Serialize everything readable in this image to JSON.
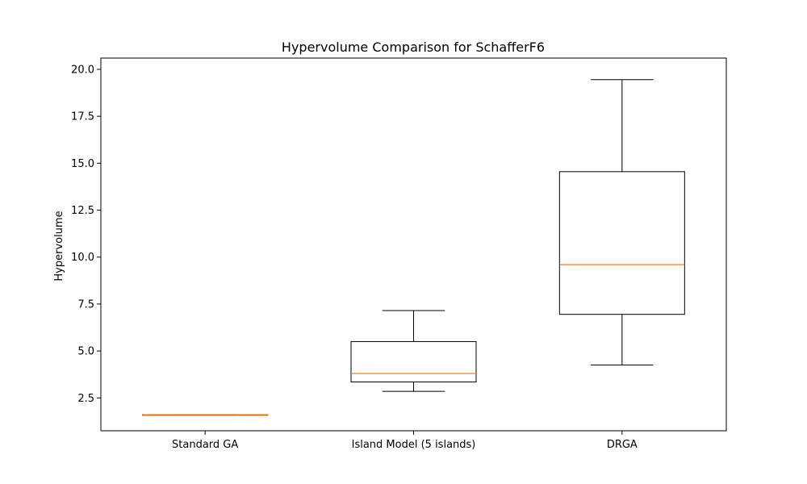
{
  "colors": {
    "box": "#000000",
    "median": "#ff7f0e",
    "background": "#ffffff"
  },
  "chart_data": {
    "type": "box",
    "title": "Hypervolume Comparison for SchafferF6",
    "xlabel": "",
    "ylabel": "Hypervolume",
    "ylim": [
      0.75,
      20.6
    ],
    "yticks": [
      "2.5",
      "5.0",
      "7.5",
      "10.0",
      "12.5",
      "15.0",
      "17.5",
      "20.0"
    ],
    "grid": false,
    "categories": [
      "Standard GA",
      "Island Model (5 islands)",
      "DRGA"
    ],
    "boxes": [
      {
        "min": 1.6,
        "q1": 1.6,
        "median": 1.6,
        "q3": 1.6,
        "max": 1.6
      },
      {
        "min": 2.85,
        "q1": 3.35,
        "median": 3.8,
        "q3": 5.5,
        "max": 7.15
      },
      {
        "min": 4.25,
        "q1": 6.95,
        "median": 9.6,
        "q3": 14.55,
        "max": 19.45
      }
    ]
  }
}
